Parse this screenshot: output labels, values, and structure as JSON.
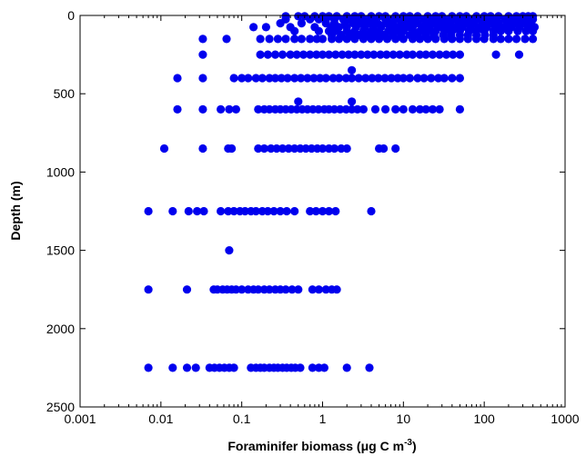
{
  "chart_data": {
    "type": "scatter",
    "xlabel": "Foraminifer biomass (μg C m",
    "xlabel_superscript": "-3",
    "xlabel_suffix": ")",
    "ylabel": "Depth (m)",
    "x_scale": "log",
    "xlim": [
      0.001,
      1000
    ],
    "ylim": [
      0,
      2500
    ],
    "y_inverted": true,
    "grid": false,
    "legend": "none",
    "marker_color": "#0000ee",
    "x_ticks": [
      0.001,
      0.01,
      0.1,
      1,
      10,
      100,
      1000
    ],
    "x_tick_labels": [
      "0.001",
      "0.01",
      "0.1",
      "1",
      "10",
      "100",
      "1000"
    ],
    "y_ticks": [
      0,
      500,
      1000,
      1500,
      2000,
      2500
    ],
    "y_tick_labels": [
      "0",
      "500",
      "1000",
      "1500",
      "2000",
      "2500"
    ],
    "rows": [
      {
        "depth": 5,
        "x": [
          0.35,
          0.5,
          0.6,
          0.8,
          1,
          1.2,
          1.5,
          2,
          2.5,
          3,
          4,
          5,
          6,
          8,
          10,
          12,
          15,
          20,
          25,
          30,
          40,
          50,
          60,
          80,
          100,
          120,
          150,
          200,
          250,
          300,
          350,
          400
        ]
      },
      {
        "depth": 25,
        "x": [
          0.35,
          0.7,
          0.9,
          1.1,
          1.4,
          1.8,
          2.2,
          2.8,
          3.5,
          4.5,
          6,
          7,
          9,
          11,
          14,
          18,
          22,
          28,
          35,
          45,
          55,
          70,
          90,
          110,
          140,
          180,
          220,
          280,
          340,
          400
        ]
      },
      {
        "depth": 50,
        "x": [
          0.3,
          0.55,
          1.1,
          1.4,
          1.9,
          2.4,
          3,
          3.8,
          4.8,
          6,
          7.5,
          9.5,
          12,
          15,
          19,
          24,
          30,
          38,
          48,
          60,
          75,
          95,
          120,
          150,
          190,
          240,
          300,
          380
        ]
      },
      {
        "depth": 75,
        "x": [
          0.14,
          0.2,
          0.4,
          0.8,
          1.3,
          1.6,
          2,
          2.6,
          3.3,
          4.2,
          5.3,
          6.8,
          8.5,
          11,
          13,
          17,
          21,
          27,
          34,
          43,
          54,
          68,
          86,
          108,
          137,
          172,
          218,
          275,
          350,
          420
        ]
      },
      {
        "depth": 100,
        "x": [
          0.45,
          0.9,
          1.2,
          1.5,
          2,
          2.5,
          3.2,
          4,
          5,
          6.5,
          8,
          10,
          13,
          16,
          20,
          25,
          32,
          40,
          50,
          65,
          80,
          100,
          130,
          160,
          200,
          260,
          330,
          400
        ]
      },
      {
        "depth": 125,
        "x": [
          1.3,
          1.7,
          2.2,
          2.8,
          3.6,
          4.6,
          5.8,
          7.4,
          9.4,
          12,
          15,
          19,
          24,
          31,
          39,
          50,
          63,
          80,
          102,
          130
        ]
      },
      {
        "depth": 150,
        "x": [
          0.033,
          0.065,
          0.17,
          0.22,
          0.28,
          0.35,
          0.45,
          0.55,
          0.7,
          0.85,
          1,
          1.3,
          1.6,
          2,
          2.5,
          3.2,
          4,
          5,
          6.3,
          8,
          10,
          13,
          16,
          20,
          25,
          32,
          40,
          50,
          63,
          80,
          100,
          130,
          160,
          200,
          250,
          320,
          400
        ]
      },
      {
        "depth": 250,
        "x": [
          0.033,
          0.17,
          0.21,
          0.26,
          0.32,
          0.4,
          0.48,
          0.58,
          0.7,
          0.84,
          1,
          1.2,
          1.45,
          1.75,
          2.1,
          2.5,
          3,
          3.6,
          4.3,
          5.2,
          6.2,
          7.5,
          9,
          11,
          13,
          16,
          19,
          23,
          28,
          34,
          41,
          50,
          140,
          270
        ]
      },
      {
        "depth": 350,
        "x": [
          2.3
        ]
      },
      {
        "depth": 400,
        "x": [
          0.016,
          0.033,
          0.08,
          0.1,
          0.12,
          0.15,
          0.18,
          0.22,
          0.26,
          0.31,
          0.37,
          0.45,
          0.54,
          0.65,
          0.78,
          0.93,
          1.1,
          1.35,
          1.6,
          1.95,
          2.3,
          2.8,
          3.4,
          4.1,
          4.9,
          5.9,
          7.1,
          8.5,
          10,
          12,
          15,
          18,
          22,
          27,
          32,
          40,
          50
        ]
      },
      {
        "depth": 550,
        "x": [
          0.5,
          2.3
        ]
      },
      {
        "depth": 600,
        "x": [
          0.016,
          0.033,
          0.055,
          0.07,
          0.085,
          0.16,
          0.19,
          0.22,
          0.26,
          0.3,
          0.35,
          0.41,
          0.48,
          0.56,
          0.65,
          0.76,
          0.89,
          1.05,
          1.2,
          1.4,
          1.65,
          1.95,
          2.3,
          2.7,
          3.2,
          4.5,
          6,
          8,
          10,
          13,
          16,
          19,
          23,
          28,
          50
        ]
      },
      {
        "depth": 850,
        "x": [
          0.011,
          0.033,
          0.068,
          0.075,
          0.16,
          0.19,
          0.23,
          0.27,
          0.32,
          0.38,
          0.45,
          0.53,
          0.62,
          0.73,
          0.86,
          1,
          1.2,
          1.4,
          1.7,
          2,
          5,
          5.7,
          8
        ]
      },
      {
        "depth": 1250,
        "x": [
          0.007,
          0.014,
          0.022,
          0.028,
          0.034,
          0.055,
          0.068,
          0.08,
          0.095,
          0.11,
          0.13,
          0.15,
          0.18,
          0.21,
          0.25,
          0.3,
          0.36,
          0.45,
          0.7,
          0.83,
          1,
          1.2,
          1.45,
          4
        ]
      },
      {
        "depth": 1500,
        "x": [
          0.07
        ]
      },
      {
        "depth": 1750,
        "x": [
          0.007,
          0.021,
          0.045,
          0.05,
          0.058,
          0.066,
          0.075,
          0.085,
          0.1,
          0.12,
          0.14,
          0.16,
          0.19,
          0.22,
          0.26,
          0.3,
          0.35,
          0.42,
          0.5,
          0.75,
          0.9,
          1.1,
          1.3,
          1.5
        ]
      },
      {
        "depth": 2250,
        "x": [
          0.007,
          0.014,
          0.021,
          0.027,
          0.04,
          0.046,
          0.053,
          0.061,
          0.07,
          0.08,
          0.13,
          0.15,
          0.17,
          0.19,
          0.22,
          0.25,
          0.28,
          0.32,
          0.36,
          0.41,
          0.46,
          0.53,
          0.75,
          0.9,
          1.05,
          2,
          3.8
        ]
      }
    ]
  }
}
